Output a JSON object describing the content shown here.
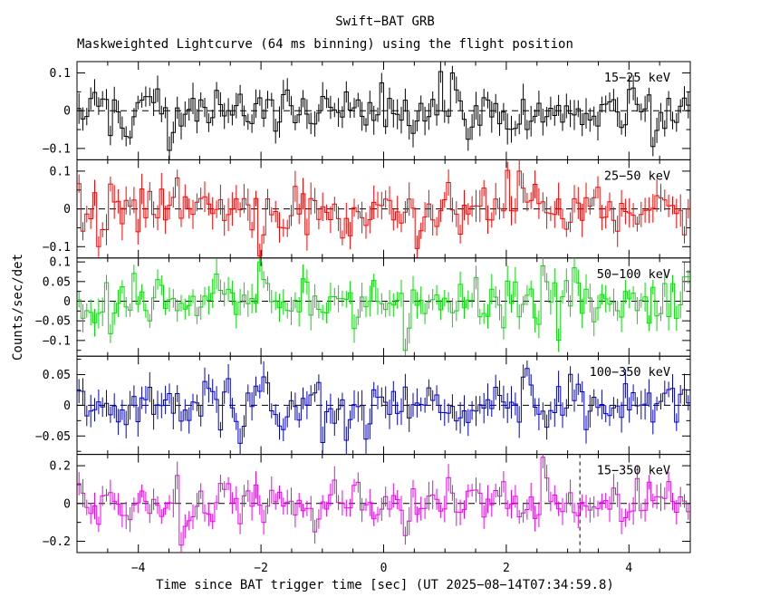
{
  "chart_data": {
    "type": "line",
    "title": "Swift−BAT GRB",
    "subtitle": "Maskweighted Lightcurve (64 ms binning) using the flight position",
    "xlabel": "Time since BAT trigger time [sec] (UT 2025−08−14T07:34:59.8)",
    "ylabel": "Counts/sec/det",
    "xlim": [
      -5,
      5
    ],
    "bin_seconds": 0.064,
    "x_minor_step": 0.5,
    "x_ticks": [
      {
        "v": -4,
        "label": "−4"
      },
      {
        "v": -2,
        "label": "−2"
      },
      {
        "v": 0,
        "label": "0"
      },
      {
        "v": 2,
        "label": "2"
      },
      {
        "v": 4,
        "label": "4"
      }
    ],
    "markers": [
      {
        "panel_index": 4,
        "x": 3.2,
        "name": "dashed-vertical-marker"
      }
    ],
    "panels": [
      {
        "label": "15−25 keV",
        "color": "#000000",
        "ylim": [
          -0.13,
          0.13
        ],
        "yticks": [
          {
            "v": 0.1,
            "label": "0.1"
          },
          {
            "v": 0,
            "label": "0"
          },
          {
            "v": -0.1,
            "label": "−0.1"
          }
        ],
        "y_minor_step": 0.05,
        "sigma": 0.032,
        "err": 0.03,
        "seed": 101,
        "spikes": [
          {
            "x": -3.55,
            "v": -0.105
          },
          {
            "x": 1.1,
            "v": 0.1
          },
          {
            "x": 4.35,
            "v": -0.095
          }
        ]
      },
      {
        "label": "25−50 keV",
        "color": "#ff0000",
        "ylim": [
          -0.13,
          0.13
        ],
        "yticks": [
          {
            "v": 0.1,
            "label": "0.1"
          },
          {
            "v": 0,
            "label": "0"
          },
          {
            "v": -0.1,
            "label": "−0.1"
          }
        ],
        "y_minor_step": 0.05,
        "sigma": 0.034,
        "err": 0.032,
        "seed": 202,
        "spikes": [
          {
            "x": -4.7,
            "v": -0.1
          },
          {
            "x": -2.05,
            "v": -0.125
          },
          {
            "x": 0.5,
            "v": -0.105
          },
          {
            "x": 2.2,
            "v": 0.1
          }
        ]
      },
      {
        "label": "50−100 keV",
        "color": "#00dd00",
        "ylim": [
          -0.14,
          0.11
        ],
        "yticks": [
          {
            "v": 0.1,
            "label": "0.1"
          },
          {
            "v": 0.05,
            "label": "0.05"
          },
          {
            "v": 0,
            "label": "0"
          },
          {
            "v": -0.05,
            "label": "−0.05"
          },
          {
            "v": -0.1,
            "label": "−0.1"
          }
        ],
        "y_minor_step": 0.025,
        "sigma": 0.03,
        "err": 0.028,
        "seed": 303,
        "spikes": [
          {
            "x": -2.05,
            "v": 0.1
          },
          {
            "x": 0.35,
            "v": -0.125
          },
          {
            "x": 2.55,
            "v": 0.09
          },
          {
            "x": 3.1,
            "v": 0.085
          }
        ]
      },
      {
        "label": "100−350 keV",
        "color": "#0000cc",
        "ylim": [
          -0.08,
          0.08
        ],
        "yticks": [
          {
            "v": 0.05,
            "label": "0.05"
          },
          {
            "v": 0,
            "label": "0"
          },
          {
            "v": -0.05,
            "label": "−0.05"
          }
        ],
        "y_minor_step": 0.025,
        "sigma": 0.02,
        "err": 0.019,
        "seed": 404,
        "spikes": [
          {
            "x": -2.4,
            "v": -0.062
          },
          {
            "x": -0.3,
            "v": -0.055
          },
          {
            "x": 2.3,
            "v": 0.06
          }
        ]
      },
      {
        "label": "15−350 keV",
        "color": "#ee00ee",
        "ylim": [
          -0.26,
          0.26
        ],
        "yticks": [
          {
            "v": 0.2,
            "label": "0.2"
          },
          {
            "v": 0,
            "label": "0"
          },
          {
            "v": -0.2,
            "label": "−0.2"
          }
        ],
        "y_minor_step": 0.1,
        "sigma": 0.06,
        "err": 0.055,
        "seed": 505,
        "spikes": [
          {
            "x": -3.35,
            "v": -0.22
          },
          {
            "x": -1.15,
            "v": -0.15
          },
          {
            "x": 0.3,
            "v": -0.17
          },
          {
            "x": 2.55,
            "v": 0.245
          }
        ]
      }
    ]
  }
}
